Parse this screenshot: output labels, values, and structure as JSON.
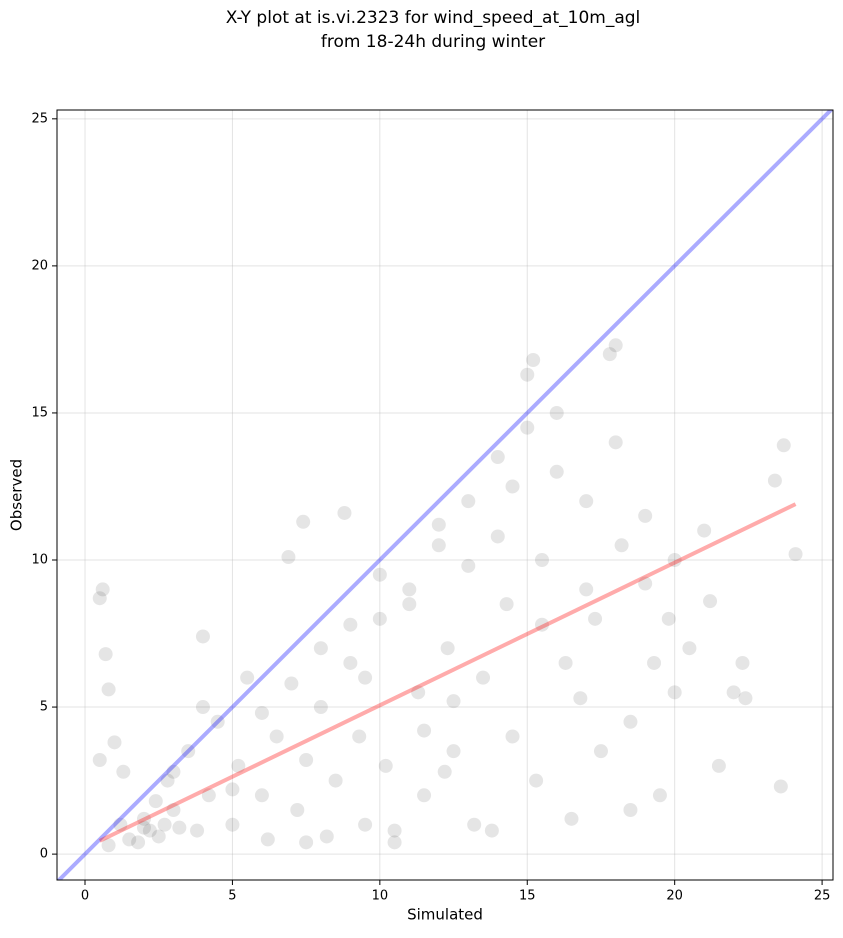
{
  "chart_data": {
    "type": "scatter",
    "title": [
      "X-Y plot at is.vi.2323 for wind_speed_at_10m_agl",
      "from 18-24h during winter"
    ],
    "xlabel": "Simulated",
    "ylabel": "Observed",
    "xlim": [
      -0.95,
      25.37
    ],
    "ylim": [
      -0.88,
      25.3
    ],
    "xticks": [
      0,
      5,
      10,
      15,
      20,
      25
    ],
    "yticks": [
      0,
      5,
      10,
      15,
      20,
      25
    ],
    "grid": true,
    "series": [
      {
        "color": "#000000",
        "x": [
          0.5,
          0.6,
          0.7,
          0.8,
          0.8,
          0.5,
          1.0,
          1.2,
          1.5,
          2.0,
          2.2,
          2.5,
          2.7,
          3.0,
          3.2,
          2.8,
          2.4,
          1.8,
          1.3,
          3.5,
          3.8,
          4.0,
          4.2,
          4.5,
          5.0,
          5.2,
          5.5,
          6.0,
          6.2,
          6.5,
          7.0,
          7.2,
          7.5,
          8.0,
          8.2,
          8.5,
          9.0,
          9.3,
          9.5,
          10.0,
          10.2,
          10.5,
          11.0,
          11.3,
          11.5,
          12.0,
          12.3,
          12.5,
          13.0,
          13.2,
          13.5,
          14.0,
          14.3,
          14.5,
          15.0,
          15.3,
          15.5,
          16.0,
          16.3,
          16.5,
          17.0,
          17.3,
          17.5,
          18.0,
          18.2,
          18.5,
          19.0,
          19.3,
          19.5,
          20.0,
          20.5,
          21.0,
          21.5,
          22.0,
          22.3,
          23.4,
          23.7,
          24.1,
          23.6,
          4.0,
          6.9,
          7.4,
          8.8,
          15.2,
          15.0,
          17.8,
          18.0,
          10.0,
          11.0,
          12.0,
          9.0,
          8.0,
          13.0,
          14.5,
          16.0,
          6.0,
          5.0,
          3.0,
          2.0,
          11.5,
          12.5,
          14.0,
          15.5,
          17.0,
          18.5,
          19.0,
          20.0,
          10.5,
          9.5,
          7.5,
          12.2,
          13.8,
          16.8,
          19.8,
          21.2,
          22.4
        ],
        "values": [
          8.7,
          9.0,
          6.8,
          5.6,
          0.3,
          3.2,
          3.8,
          1.0,
          0.5,
          1.2,
          0.8,
          0.6,
          1.0,
          1.5,
          0.9,
          2.5,
          1.8,
          0.4,
          2.8,
          3.5,
          0.8,
          7.4,
          2.0,
          4.5,
          1.0,
          3.0,
          6.0,
          2.0,
          0.5,
          4.0,
          5.8,
          1.5,
          3.2,
          7.0,
          0.6,
          2.5,
          6.5,
          4.0,
          1.0,
          8.0,
          3.0,
          0.4,
          9.0,
          5.5,
          2.0,
          10.5,
          7.0,
          3.5,
          12.0,
          1.0,
          6.0,
          13.5,
          8.5,
          4.0,
          14.5,
          2.5,
          10.0,
          15.0,
          6.5,
          1.2,
          12.0,
          8.0,
          3.5,
          14.0,
          10.5,
          4.5,
          11.5,
          6.5,
          2.0,
          10.0,
          7.0,
          11.0,
          3.0,
          5.5,
          6.5,
          12.7,
          13.9,
          10.2,
          2.3,
          5.0,
          10.1,
          11.3,
          11.6,
          16.8,
          16.3,
          17.0,
          17.3,
          9.5,
          8.5,
          11.2,
          7.8,
          5.0,
          9.8,
          12.5,
          13.0,
          4.8,
          2.2,
          2.8,
          0.9,
          4.2,
          5.2,
          10.8,
          7.8,
          9.0,
          1.5,
          9.2,
          5.5,
          0.8,
          6.0,
          0.4,
          2.8,
          0.8,
          5.3,
          8.0,
          8.6,
          5.3
        ]
      }
    ],
    "lines": [
      {
        "color": "#0000ff",
        "x": [
          -0.95,
          25.37
        ],
        "values": [
          -0.95,
          25.37
        ]
      },
      {
        "color": "#ff0000",
        "x": [
          0.5,
          24.1
        ],
        "values": [
          0.45,
          11.9
        ]
      }
    ]
  }
}
